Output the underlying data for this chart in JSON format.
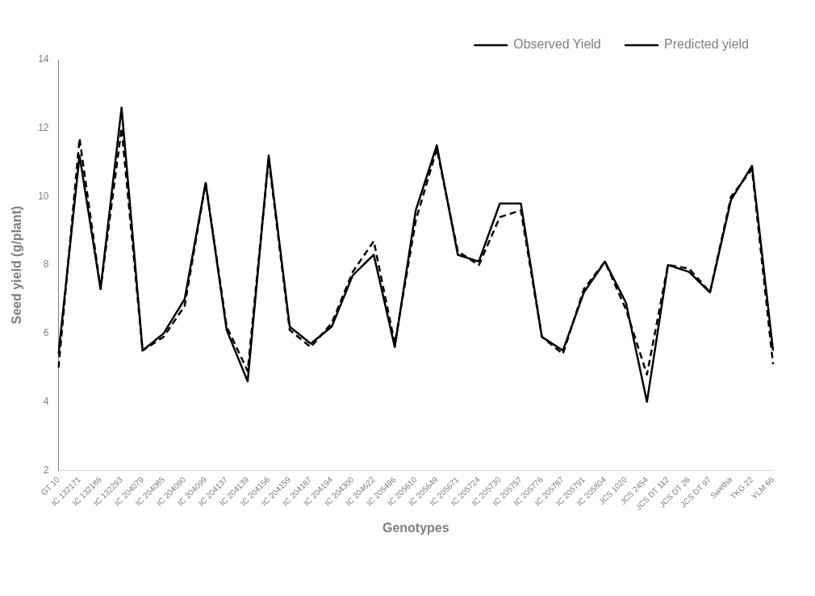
{
  "chart_data": {
    "type": "line",
    "xlabel": "Genotypes",
    "ylabel": "Seed yield (g/plant)",
    "categories": [
      "GT 10",
      "IC 132171",
      "IC 132186",
      "IC 132293",
      "IC 204079",
      "IC 204085",
      "IC 204090",
      "IC 204099",
      "IC 204137",
      "IC 204139",
      "IC 204156",
      "IC 204159",
      "IC 204167",
      "IC 204194",
      "IC 204300",
      "IC 204622",
      "IC 205496",
      "IC 205610",
      "IC 205649",
      "IC 205671",
      "IC 205724",
      "IC 205730",
      "IC 205757",
      "IC 205776",
      "IC 205787",
      "IC 205791",
      "IC 205804",
      "JCS 1020",
      "JCS 2454",
      "JCS DT 112",
      "JCS DT 26",
      "JCS DT 97",
      "Swetha",
      "TKG 22",
      "YLM 66"
    ],
    "series": [
      {
        "name": "Observed Yield",
        "color": "#000000",
        "line_style": "solid",
        "values": [
          5.4,
          11.2,
          7.3,
          12.6,
          5.5,
          6.0,
          7.0,
          10.4,
          6.1,
          4.6,
          11.2,
          6.2,
          5.7,
          6.2,
          7.7,
          8.3,
          5.6,
          9.6,
          11.5,
          8.3,
          8.1,
          9.8,
          9.8,
          5.9,
          5.5,
          7.2,
          8.1,
          6.9,
          4.0,
          8.0,
          7.8,
          7.2,
          9.9,
          10.9,
          5.5
        ]
      },
      {
        "name": "Predicted yield",
        "color": "#000000",
        "line_style": "dashed",
        "values": [
          5.0,
          11.7,
          7.3,
          12.0,
          5.5,
          5.9,
          6.8,
          10.4,
          6.2,
          4.9,
          11.1,
          6.1,
          5.6,
          6.3,
          7.8,
          8.7,
          5.7,
          9.3,
          11.4,
          8.4,
          8.0,
          9.4,
          9.6,
          5.9,
          5.4,
          7.3,
          8.1,
          6.7,
          4.8,
          8.0,
          7.9,
          7.2,
          10.0,
          10.8,
          5.1
        ]
      }
    ],
    "ylim": [
      2,
      14
    ],
    "yticks": [
      2,
      4,
      6,
      8,
      10,
      12,
      14
    ],
    "grid": false,
    "legend": "top right",
    "marker": "none"
  }
}
